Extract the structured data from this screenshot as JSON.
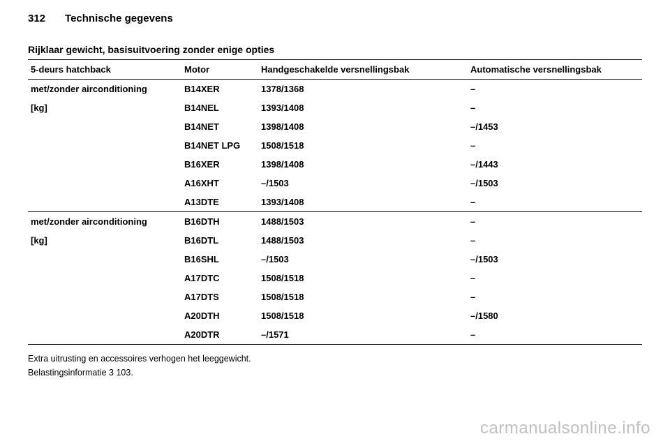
{
  "header": {
    "page_number": "312",
    "chapter": "Technische gegevens"
  },
  "section_title": "Rijklaar gewicht, basisuitvoering zonder enige opties",
  "table": {
    "columns": [
      "5-deurs hatchback",
      "Motor",
      "Handgeschakelde versnellingsbak",
      "Automatische versnellingsbak"
    ],
    "groups": [
      {
        "desc_lines": [
          "met/zonder airconditioning",
          "[kg]"
        ],
        "rows": [
          {
            "motor": "B14XER",
            "manual": "1378/1368",
            "auto": "–"
          },
          {
            "motor": "B14NEL",
            "manual": "1393/1408",
            "auto": "–"
          },
          {
            "motor": "B14NET",
            "manual": "1398/1408",
            "auto": "–/1453"
          },
          {
            "motor": "B14NET LPG",
            "manual": "1508/1518",
            "auto": "–"
          },
          {
            "motor": "B16XER",
            "manual": "1398/1408",
            "auto": "–/1443"
          },
          {
            "motor": "A16XHT",
            "manual": "–/1503",
            "auto": "–/1503"
          },
          {
            "motor": "A13DTE",
            "manual": "1393/1408",
            "auto": "–"
          }
        ]
      },
      {
        "desc_lines": [
          "met/zonder airconditioning",
          "[kg]"
        ],
        "rows": [
          {
            "motor": "B16DTH",
            "manual": "1488/1503",
            "auto": "–"
          },
          {
            "motor": "B16DTL",
            "manual": "1488/1503",
            "auto": "–"
          },
          {
            "motor": "B16SHL",
            "manual": "–/1503",
            "auto": "–/1503"
          },
          {
            "motor": "A17DTC",
            "manual": "1508/1518",
            "auto": "–"
          },
          {
            "motor": "A17DTS",
            "manual": "1508/1518",
            "auto": "–"
          },
          {
            "motor": "A20DTH",
            "manual": "1508/1518",
            "auto": "–/1580"
          },
          {
            "motor": "A20DTR",
            "manual": "–/1571",
            "auto": "–"
          }
        ]
      }
    ]
  },
  "footnotes": {
    "line1": "Extra uitrusting en accessoires verhogen het leeggewicht.",
    "line2_prefix": "Belastingsinformatie ",
    "line2_ref": "3",
    "line2_page": " 103."
  },
  "watermark": "carmanualsonline.info"
}
